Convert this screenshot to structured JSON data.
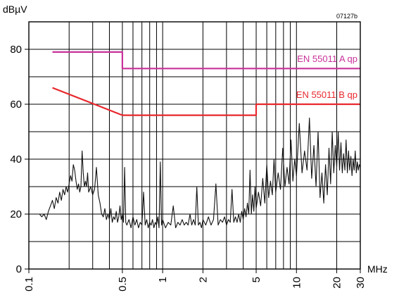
{
  "chart_data": {
    "type": "line",
    "figure_id": "07127b",
    "ylabel": "dBµV",
    "xlabel": "MHz",
    "x_scale": "log",
    "xlim": [
      0.1,
      30
    ],
    "ylim": [
      0,
      90
    ],
    "grid": true,
    "y_ticks": [
      {
        "value": 0,
        "label": "0"
      },
      {
        "value": 20,
        "label": "20"
      },
      {
        "value": 40,
        "label": "40"
      },
      {
        "value": 60,
        "label": "60"
      },
      {
        "value": 80,
        "label": "80"
      }
    ],
    "x_ticks": [
      {
        "value": 0.1,
        "label": "0.1"
      },
      {
        "value": 0.5,
        "label": "0.5"
      },
      {
        "value": 1,
        "label": "1"
      },
      {
        "value": 2,
        "label": "2"
      },
      {
        "value": 5,
        "label": "5"
      },
      {
        "value": 10,
        "label": "10"
      },
      {
        "value": 20,
        "label": "20"
      },
      {
        "value": 30,
        "label": "30"
      }
    ],
    "x_gridlines": [
      0.2,
      0.3,
      0.4,
      0.5,
      0.6,
      0.7,
      0.8,
      0.9,
      1,
      2,
      3,
      4,
      5,
      6,
      7,
      8,
      9,
      10,
      20
    ],
    "series": [
      {
        "name": "EN 55011 A qp",
        "color": "#c8329a",
        "points": [
          [
            0.15,
            79
          ],
          [
            0.5,
            79
          ],
          [
            0.5,
            73
          ],
          [
            30,
            73
          ]
        ]
      },
      {
        "name": "EN 55011 B qp",
        "color": "#e8282d",
        "points": [
          [
            0.15,
            66
          ],
          [
            0.5,
            56
          ],
          [
            5,
            56
          ],
          [
            5,
            60
          ],
          [
            30,
            60
          ]
        ]
      },
      {
        "name": "",
        "color": "#111111",
        "points": [
          [
            0.12,
            20
          ],
          [
            0.125,
            19
          ],
          [
            0.13,
            20
          ],
          [
            0.135,
            18
          ],
          [
            0.14,
            21
          ],
          [
            0.145,
            23
          ],
          [
            0.15,
            25
          ],
          [
            0.155,
            22
          ],
          [
            0.16,
            26
          ],
          [
            0.165,
            24
          ],
          [
            0.17,
            28
          ],
          [
            0.175,
            25
          ],
          [
            0.18,
            29
          ],
          [
            0.185,
            27
          ],
          [
            0.19,
            30
          ],
          [
            0.195,
            28
          ],
          [
            0.2,
            31
          ],
          [
            0.205,
            34
          ],
          [
            0.21,
            32
          ],
          [
            0.215,
            38
          ],
          [
            0.22,
            36
          ],
          [
            0.225,
            32
          ],
          [
            0.23,
            29
          ],
          [
            0.235,
            31
          ],
          [
            0.24,
            28
          ],
          [
            0.245,
            30
          ],
          [
            0.25,
            43
          ],
          [
            0.255,
            35
          ],
          [
            0.26,
            30
          ],
          [
            0.265,
            32
          ],
          [
            0.27,
            30
          ],
          [
            0.275,
            35
          ],
          [
            0.28,
            28
          ],
          [
            0.29,
            30
          ],
          [
            0.3,
            27
          ],
          [
            0.31,
            29
          ],
          [
            0.32,
            37
          ],
          [
            0.33,
            27
          ],
          [
            0.34,
            24
          ],
          [
            0.35,
            20
          ],
          [
            0.36,
            19
          ],
          [
            0.37,
            22
          ],
          [
            0.38,
            18
          ],
          [
            0.39,
            20
          ],
          [
            0.4,
            18
          ],
          [
            0.41,
            22
          ],
          [
            0.42,
            17
          ],
          [
            0.43,
            19
          ],
          [
            0.44,
            18
          ],
          [
            0.45,
            21
          ],
          [
            0.46,
            17
          ],
          [
            0.47,
            19
          ],
          [
            0.48,
            23
          ],
          [
            0.49,
            18
          ],
          [
            0.5,
            20
          ],
          [
            0.51,
            17
          ],
          [
            0.52,
            37
          ],
          [
            0.53,
            17
          ],
          [
            0.54,
            16
          ],
          [
            0.56,
            18
          ],
          [
            0.58,
            15
          ],
          [
            0.6,
            19
          ],
          [
            0.62,
            16
          ],
          [
            0.64,
            18
          ],
          [
            0.66,
            15
          ],
          [
            0.68,
            17
          ],
          [
            0.7,
            16
          ],
          [
            0.72,
            28
          ],
          [
            0.74,
            16
          ],
          [
            0.76,
            18
          ],
          [
            0.78,
            15
          ],
          [
            0.8,
            17
          ],
          [
            0.82,
            16
          ],
          [
            0.84,
            18
          ],
          [
            0.86,
            15
          ],
          [
            0.88,
            17
          ],
          [
            0.9,
            16
          ],
          [
            0.92,
            19
          ],
          [
            0.94,
            15
          ],
          [
            0.96,
            39
          ],
          [
            0.98,
            16
          ],
          [
            1.0,
            18
          ],
          [
            1.05,
            15
          ],
          [
            1.1,
            17
          ],
          [
            1.15,
            16
          ],
          [
            1.2,
            23
          ],
          [
            1.25,
            15
          ],
          [
            1.3,
            17
          ],
          [
            1.35,
            16
          ],
          [
            1.4,
            18
          ],
          [
            1.45,
            16
          ],
          [
            1.5,
            17
          ],
          [
            1.55,
            16
          ],
          [
            1.6,
            20
          ],
          [
            1.65,
            16
          ],
          [
            1.7,
            18
          ],
          [
            1.75,
            16
          ],
          [
            1.8,
            30
          ],
          [
            1.85,
            16
          ],
          [
            1.9,
            17
          ],
          [
            1.95,
            15
          ],
          [
            2.0,
            18
          ],
          [
            2.1,
            16
          ],
          [
            2.2,
            19
          ],
          [
            2.3,
            16
          ],
          [
            2.4,
            18
          ],
          [
            2.5,
            31
          ],
          [
            2.6,
            16
          ],
          [
            2.7,
            18
          ],
          [
            2.8,
            17
          ],
          [
            2.9,
            19
          ],
          [
            3.0,
            16
          ],
          [
            3.1,
            18
          ],
          [
            3.2,
            17
          ],
          [
            3.3,
            29
          ],
          [
            3.4,
            17
          ],
          [
            3.5,
            19
          ],
          [
            3.6,
            17
          ],
          [
            3.7,
            20
          ],
          [
            3.8,
            17
          ],
          [
            3.9,
            21
          ],
          [
            4.0,
            18
          ],
          [
            4.1,
            22
          ],
          [
            4.2,
            19
          ],
          [
            4.3,
            24
          ],
          [
            4.4,
            20
          ],
          [
            4.5,
            36
          ],
          [
            4.6,
            20
          ],
          [
            4.7,
            27
          ],
          [
            4.8,
            21
          ],
          [
            4.9,
            30
          ],
          [
            5.0,
            22
          ],
          [
            5.2,
            28
          ],
          [
            5.4,
            23
          ],
          [
            5.6,
            33
          ],
          [
            5.8,
            24
          ],
          [
            6.0,
            38
          ],
          [
            6.2,
            26
          ],
          [
            6.4,
            32
          ],
          [
            6.6,
            27
          ],
          [
            6.8,
            40
          ],
          [
            7.0,
            28
          ],
          [
            7.3,
            35
          ],
          [
            7.6,
            29
          ],
          [
            7.9,
            44
          ],
          [
            8.2,
            30
          ],
          [
            8.5,
            37
          ],
          [
            8.8,
            31
          ],
          [
            9.1,
            47
          ],
          [
            9.4,
            32
          ],
          [
            9.7,
            40
          ],
          [
            10.0,
            34
          ],
          [
            10.5,
            53
          ],
          [
            11.0,
            35
          ],
          [
            11.5,
            43
          ],
          [
            12.0,
            36
          ],
          [
            12.5,
            55
          ],
          [
            13.0,
            33
          ],
          [
            13.5,
            45
          ],
          [
            14.0,
            30
          ],
          [
            14.5,
            50
          ],
          [
            15.0,
            26
          ],
          [
            15.5,
            35
          ],
          [
            16.0,
            24
          ],
          [
            16.5,
            38
          ],
          [
            17.0,
            27
          ],
          [
            17.5,
            44
          ],
          [
            18.0,
            31
          ],
          [
            18.5,
            50
          ],
          [
            19.0,
            35
          ],
          [
            19.5,
            45
          ],
          [
            20.0,
            37
          ],
          [
            20.5,
            50
          ],
          [
            21.0,
            36
          ],
          [
            21.5,
            46
          ],
          [
            22.0,
            35
          ],
          [
            22.5,
            42
          ],
          [
            23.0,
            36
          ],
          [
            23.5,
            47
          ],
          [
            24.0,
            35
          ],
          [
            24.5,
            43
          ],
          [
            25.0,
            36
          ],
          [
            25.5,
            41
          ],
          [
            26.0,
            34
          ],
          [
            26.5,
            40
          ],
          [
            27.0,
            36
          ],
          [
            27.5,
            43
          ],
          [
            28.0,
            35
          ],
          [
            28.5,
            39
          ],
          [
            29.0,
            36
          ],
          [
            29.5,
            38
          ],
          [
            30.0,
            37
          ]
        ]
      }
    ]
  }
}
